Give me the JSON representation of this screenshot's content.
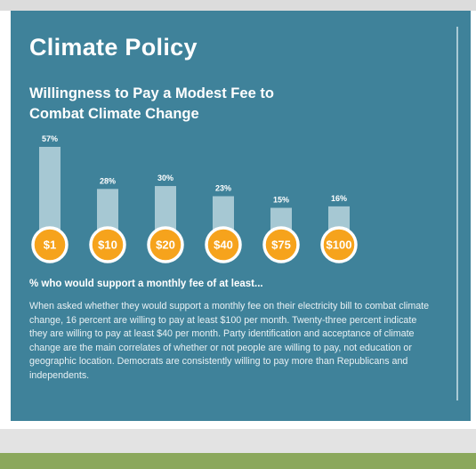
{
  "page_title": "Climate Policy",
  "chart_title": "Willingness to Pay a Modest Fee to Combat Climate Change",
  "caption": "% who would support a monthly fee of at least...",
  "body_text": "When asked whether they would support a monthly fee on their electricity bill to combat climate change, 16 percent are willing to pay at least $100 per month. Twenty-three percent indicate they are willing to pay at least $40 per month. Party identification and acceptance of climate change are the main correlates of whether or not people are willing to pay, not education or geographic location. Democrats are consistently willing to pay more than Republicans and independents.",
  "colors": {
    "background": "#3f829a",
    "bar": "#a6c8d3",
    "badge_fill": "#f6a31c",
    "badge_ring": "#ffffff"
  },
  "chart_data": {
    "type": "bar",
    "title": "Willingness to Pay a Modest Fee to Combat Climate Change",
    "categories": [
      "$1",
      "$10",
      "$20",
      "$40",
      "$75",
      "$100"
    ],
    "values": [
      57,
      28,
      30,
      23,
      15,
      16
    ],
    "value_labels": [
      "57%",
      "28%",
      "30%",
      "23%",
      "15%",
      "16%"
    ],
    "xlabel": "% who would support a monthly fee of at least...",
    "ylabel": "",
    "ylim": [
      0,
      57
    ],
    "grid": false,
    "legend": "none"
  }
}
